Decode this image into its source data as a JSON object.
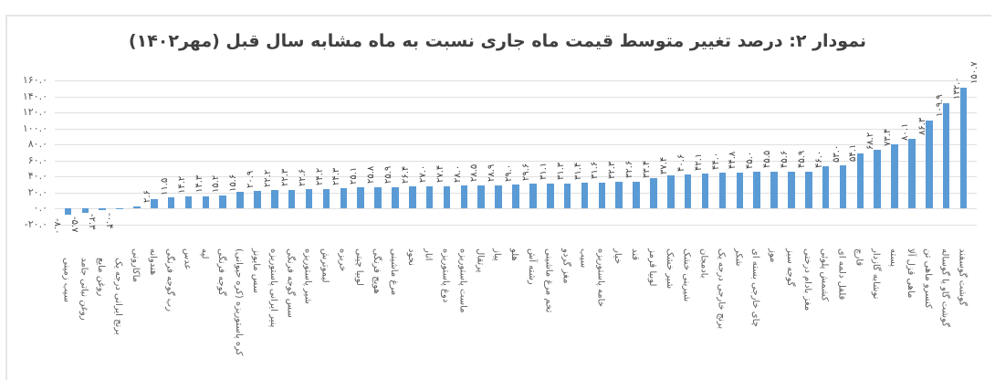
{
  "chart_data": {
    "type": "bar",
    "title": "نمودار ۲: درصد تغییر متوسط قیمت ماه جاری نسبت به ماه مشابه سال قبل (مهر۱۴۰۲)",
    "xlabel": "",
    "ylabel": "",
    "ylim": [
      -20,
      160
    ],
    "yticks": [
      -20,
      0,
      20,
      40,
      60,
      80,
      100,
      120,
      140,
      160
    ],
    "ytick_labels": [
      "-۲۰.۰",
      "۰.۰",
      "۲۰.۰",
      "۴۰.۰",
      "۶۰.۰",
      "۸۰.۰",
      "۱۰۰.۰",
      "۱۲۰.۰",
      "۱۴۰.۰",
      "۱۶۰.۰"
    ],
    "grid": true,
    "legend": "none",
    "bar_color": "#5b9bd5",
    "categories": [
      "سیب زمینی",
      "روغن نباتی جامد",
      "روغن مایع",
      "برنج ایرانی درجه یک",
      "ماکارونی",
      "هندوانه",
      "رب گوجه فرنگی",
      "عدس",
      "لپه",
      "گوجه فرنگی",
      "کره پاستوریزه (کره حیوانی)",
      "سس مایونز",
      "پنیر ایرانی پاستوریزه",
      "سس گوجه فرنگی",
      "شیر پاستوریزه",
      "لیموترش",
      "خربزه",
      "لوبیا چیتی",
      "هویج فرنگی",
      "مرغ ماشینی",
      "نخود",
      "انار",
      "دوغ پاستوریزه",
      "ماست پاستوریزه",
      "پرتقال",
      "پیاز",
      "هلو",
      "رشته آش",
      "تخم مرغ ماشینی",
      "مغز گردو",
      "سیب",
      "خامه پاستوریزه",
      "خیار",
      "قند",
      "لوبیا قرمز",
      "شیر خشک",
      "شیرینی خشک",
      "بادمجان",
      "برنج خارجی درجه یک",
      "شکر",
      "چای خارجی بسته ای",
      "موز",
      "گوجه سبز",
      "مغز بادام درختی",
      "کشمش پلوئی",
      "فلفل دلمه ای",
      "قارچ",
      "نوشابه گازدار",
      "پسته",
      "ماهی قزل آلا",
      "کنسرو ماهی تن",
      "گوشت گاو یا گوساله",
      "گوشت گوسفند"
    ],
    "values": [
      -8.0,
      -5.7,
      -2.3,
      -0.4,
      2.6,
      11.5,
      14.2,
      14.3,
      15.2,
      15.6,
      20.9,
      22.2,
      22.3,
      22.6,
      24.2,
      24.3,
      25.1,
      25.8,
      25.9,
      26.4,
      27.0,
      27.4,
      28.0,
      28.5,
      28.9,
      29.0,
      29.6,
      31.1,
      31.3,
      31.4,
      31.6,
      32.3,
      32.6,
      33.4,
      37.4,
      40.6,
      42.1,
      44.0,
      44.8,
      45.0,
      45.5,
      45.6,
      45.9,
      46.0,
      53.0,
      54.1,
      68.2,
      73.4,
      80.1,
      86.3,
      109.9,
      132.0,
      150.7
    ],
    "value_labels": [
      "-۸.۰",
      "-۵.۷",
      "-۲.۳",
      "-۰.۴",
      "۲.۶",
      "۱۱.۵",
      "۱۴.۲",
      "۱۴.۳",
      "۱۵.۲",
      "۱۵.۶",
      "۲۰.۹",
      "۲۲.۲",
      "۲۲.۳",
      "۲۲.۶",
      "۲۴.۲",
      "۲۴.۳",
      "۲۵.۱",
      "۲۵.۸",
      "۲۵.۹",
      "۲۶.۴",
      "۲۷.۰",
      "۲۷.۴",
      "۲۸.۰",
      "۲۸.۵",
      "۲۸.۹",
      "۲۹.۰",
      "۲۹.۶",
      "۳۱.۱",
      "۳۱.۳",
      "۳۱.۴",
      "۳۱.۶",
      "۳۲.۳",
      "۳۲.۶",
      "۳۳.۴",
      "۳۷.۴",
      "۴۰.۶",
      "۴۲.۱",
      "۴۴.۰",
      "۴۴.۸",
      "۴۵.۰",
      "۴۵.۵",
      "۴۵.۶",
      "۴۵.۹",
      "۴۶.۰",
      "۵۳.۰",
      "۵۴.۱",
      "۶۸.۲",
      "۷۳.۴",
      "۸۰.۱",
      "۸۶.۳",
      "۱۰۹.۹",
      "۱۳۲.۰",
      "۱۵۰.۷"
    ]
  }
}
